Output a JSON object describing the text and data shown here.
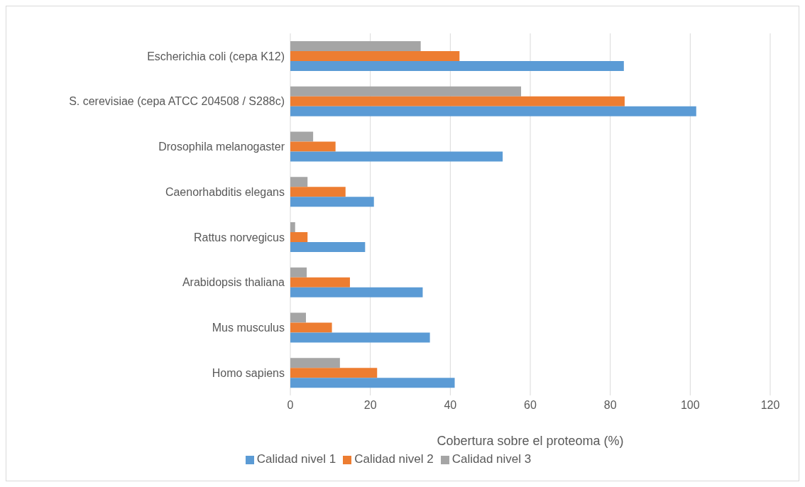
{
  "chart_data": {
    "type": "bar",
    "orientation": "horizontal",
    "xlabel": "Cobertura sobre el proteoma (%)",
    "categories": [
      "Escherichia coli (cepa K12)",
      "S. cerevisiae (cepa ATCC 204508 / S288c)",
      "Drosophila melanogaster",
      "Caenorhabditis elegans",
      "Rattus norvegicus",
      "Arabidopsis thaliana",
      "Mus musculus",
      "Homo sapiens"
    ],
    "series": [
      {
        "name": "Calidad nivel 3",
        "color": "#a5a5a5",
        "values": [
          32.6,
          57.7,
          5.7,
          4.3,
          1.2,
          4.1,
          3.9,
          12.4
        ]
      },
      {
        "name": "Calidad nivel 2",
        "color": "#ed7d31",
        "values": [
          42.3,
          83.6,
          11.3,
          13.8,
          4.3,
          14.9,
          10.4,
          21.7
        ]
      },
      {
        "name": "Calidad nivel 1",
        "color": "#5b9bd5",
        "values": [
          83.4,
          101.5,
          53.1,
          20.9,
          18.7,
          33.1,
          34.9,
          41.1
        ]
      }
    ],
    "xlim": [
      0,
      120
    ],
    "xticks": [
      0,
      20,
      40,
      60,
      80,
      100,
      120
    ],
    "grid": "x",
    "legend": "bottom"
  }
}
